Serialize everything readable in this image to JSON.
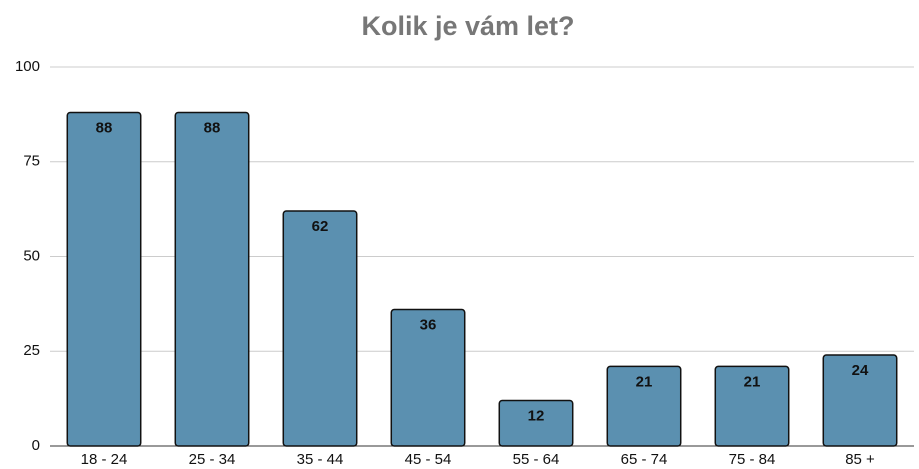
{
  "chart_data": {
    "type": "bar",
    "title": "Kolik je vám let?",
    "categories": [
      "18 - 24",
      "25 - 34",
      "35 - 44",
      "45 - 54",
      "55 - 64",
      "65 - 74",
      "75 - 84",
      "85 +"
    ],
    "values": [
      88,
      88,
      62,
      36,
      12,
      21,
      21,
      24
    ],
    "color": "#5b90b0",
    "ylim": [
      0,
      100
    ],
    "yticks": [
      0,
      25,
      50,
      75,
      100
    ],
    "grid": true
  }
}
